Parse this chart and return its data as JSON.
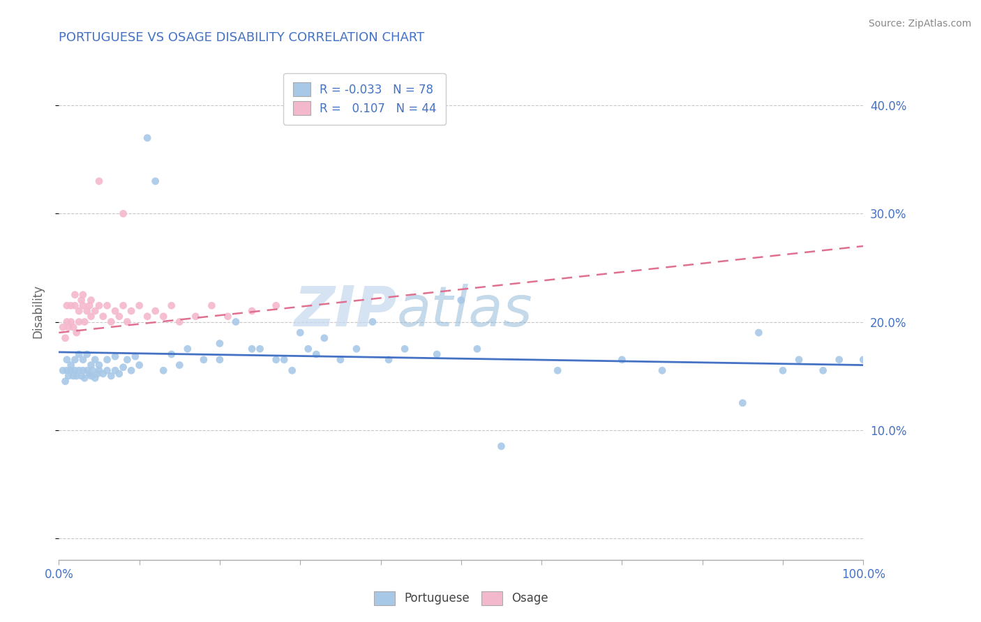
{
  "title": "PORTUGUESE VS OSAGE DISABILITY CORRELATION CHART",
  "source_text": "Source: ZipAtlas.com",
  "ylabel": "Disability",
  "title_color": "#4472c4",
  "title_fontsize": 13,
  "watermark_zip": "ZIP",
  "watermark_atlas": "atlas",
  "color_portuguese": "#a8c8e8",
  "color_osage": "#f4b8cc",
  "line_color_portuguese": "#4472c4",
  "line_color_osage": "#e07090",
  "xlim": [
    0.0,
    1.0
  ],
  "ylim": [
    -0.02,
    0.44
  ],
  "xticks": [
    0.0,
    0.1,
    0.2,
    0.3,
    0.4,
    0.5,
    0.6,
    0.7,
    0.8,
    0.9,
    1.0
  ],
  "yticks": [
    0.0,
    0.1,
    0.2,
    0.3,
    0.4
  ],
  "xtick_labels_bottom": [
    "0.0%",
    "",
    "",
    "",
    "",
    "",
    "",
    "",
    "",
    "",
    "100.0%"
  ],
  "ytick_labels_right": [
    "",
    "10.0%",
    "20.0%",
    "30.0%",
    "40.0%"
  ],
  "right_axis_color": "#4472c4",
  "background_color": "#ffffff",
  "grid_color": "#c8c8c8",
  "portuguese_x": [
    0.005,
    0.008,
    0.01,
    0.01,
    0.012,
    0.015,
    0.015,
    0.018,
    0.02,
    0.02,
    0.022,
    0.025,
    0.025,
    0.028,
    0.03,
    0.03,
    0.032,
    0.035,
    0.035,
    0.038,
    0.04,
    0.04,
    0.042,
    0.045,
    0.045,
    0.048,
    0.05,
    0.05,
    0.055,
    0.06,
    0.06,
    0.065,
    0.07,
    0.07,
    0.075,
    0.08,
    0.085,
    0.09,
    0.095,
    0.1,
    0.11,
    0.12,
    0.13,
    0.14,
    0.15,
    0.16,
    0.18,
    0.2,
    0.22,
    0.25,
    0.27,
    0.29,
    0.3,
    0.32,
    0.33,
    0.35,
    0.37,
    0.39,
    0.41,
    0.43,
    0.47,
    0.5,
    0.52,
    0.55,
    0.62,
    0.7,
    0.75,
    0.85,
    0.87,
    0.9,
    0.92,
    0.95,
    0.97,
    1.0,
    0.2,
    0.24,
    0.28,
    0.31
  ],
  "portuguese_y": [
    0.155,
    0.145,
    0.155,
    0.165,
    0.15,
    0.155,
    0.16,
    0.15,
    0.155,
    0.165,
    0.15,
    0.155,
    0.17,
    0.15,
    0.155,
    0.165,
    0.148,
    0.155,
    0.17,
    0.152,
    0.15,
    0.16,
    0.155,
    0.148,
    0.165,
    0.152,
    0.155,
    0.16,
    0.152,
    0.155,
    0.165,
    0.15,
    0.155,
    0.168,
    0.152,
    0.158,
    0.165,
    0.155,
    0.168,
    0.16,
    0.37,
    0.33,
    0.155,
    0.17,
    0.16,
    0.175,
    0.165,
    0.165,
    0.2,
    0.175,
    0.165,
    0.155,
    0.19,
    0.17,
    0.185,
    0.165,
    0.175,
    0.2,
    0.165,
    0.175,
    0.17,
    0.22,
    0.175,
    0.085,
    0.155,
    0.165,
    0.155,
    0.125,
    0.19,
    0.155,
    0.165,
    0.155,
    0.165,
    0.165,
    0.18,
    0.175,
    0.165,
    0.175
  ],
  "osage_x": [
    0.005,
    0.008,
    0.01,
    0.01,
    0.012,
    0.015,
    0.015,
    0.018,
    0.02,
    0.02,
    0.022,
    0.025,
    0.025,
    0.028,
    0.03,
    0.03,
    0.032,
    0.035,
    0.038,
    0.04,
    0.04,
    0.045,
    0.05,
    0.055,
    0.06,
    0.065,
    0.07,
    0.075,
    0.08,
    0.085,
    0.09,
    0.1,
    0.11,
    0.12,
    0.13,
    0.14,
    0.15,
    0.17,
    0.19,
    0.21,
    0.24,
    0.27,
    0.05,
    0.08
  ],
  "osage_y": [
    0.195,
    0.185,
    0.2,
    0.215,
    0.195,
    0.2,
    0.215,
    0.195,
    0.215,
    0.225,
    0.19,
    0.21,
    0.2,
    0.22,
    0.215,
    0.225,
    0.2,
    0.21,
    0.215,
    0.205,
    0.22,
    0.21,
    0.215,
    0.205,
    0.215,
    0.2,
    0.21,
    0.205,
    0.215,
    0.2,
    0.21,
    0.215,
    0.205,
    0.21,
    0.205,
    0.215,
    0.2,
    0.205,
    0.215,
    0.205,
    0.21,
    0.215,
    0.33,
    0.3
  ],
  "port_trend_x0": 0.0,
  "port_trend_y0": 0.172,
  "port_trend_x1": 1.0,
  "port_trend_y1": 0.16,
  "osage_trend_x0": 0.0,
  "osage_trend_y0": 0.19,
  "osage_trend_x1": 1.0,
  "osage_trend_y1": 0.27
}
